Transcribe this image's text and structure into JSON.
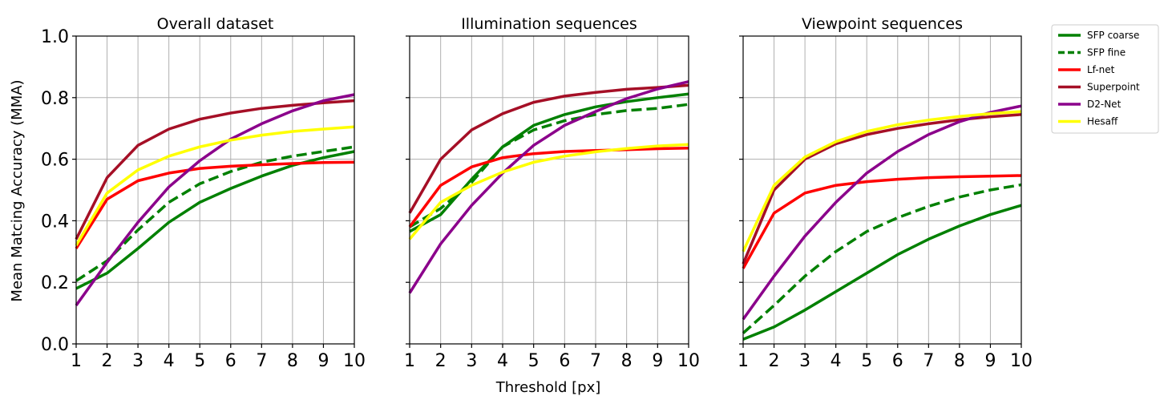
{
  "chart_data": {
    "type": "line",
    "xlabel": "Threshold [px]",
    "ylabel": "Mean Matcing Accuracy (MMA)",
    "x": [
      1,
      2,
      3,
      4,
      5,
      6,
      7,
      8,
      9,
      10
    ],
    "xlim": [
      1,
      10
    ],
    "ylim": [
      0,
      1
    ],
    "x_ticks": [
      "1",
      "2",
      "3",
      "4",
      "5",
      "6",
      "7",
      "8",
      "9",
      "10"
    ],
    "y_ticks": [
      "0.0",
      "0.2",
      "0.4",
      "0.6",
      "0.8",
      "1.0"
    ],
    "grid": true,
    "legend_placement": "right",
    "legend": [
      {
        "name": "SFP coarse",
        "color": "#008000",
        "dash": "solid"
      },
      {
        "name": "SFP fine",
        "color": "#008000",
        "dash": "dashed"
      },
      {
        "name": "Lf-net",
        "color": "#ff0000",
        "dash": "solid"
      },
      {
        "name": "Superpoint",
        "color": "#a50f26",
        "dash": "solid"
      },
      {
        "name": "D2-Net",
        "color": "#8b008b",
        "dash": "solid"
      },
      {
        "name": "Hesaff",
        "color": "#ffff00",
        "dash": "solid"
      }
    ],
    "panels": [
      {
        "title": "Overall dataset",
        "series": [
          {
            "name": "SFP coarse",
            "values": [
              0.18,
              0.23,
              0.31,
              0.395,
              0.46,
              0.505,
              0.545,
              0.58,
              0.605,
              0.625
            ]
          },
          {
            "name": "SFP fine",
            "values": [
              0.205,
              0.27,
              0.37,
              0.46,
              0.52,
              0.56,
              0.59,
              0.61,
              0.625,
              0.64
            ]
          },
          {
            "name": "Lf-net",
            "values": [
              0.31,
              0.47,
              0.53,
              0.555,
              0.57,
              0.577,
              0.582,
              0.586,
              0.589,
              0.59
            ]
          },
          {
            "name": "Superpoint",
            "values": [
              0.34,
              0.54,
              0.645,
              0.698,
              0.73,
              0.75,
              0.765,
              0.775,
              0.783,
              0.79
            ]
          },
          {
            "name": "D2-Net",
            "values": [
              0.125,
              0.265,
              0.395,
              0.51,
              0.595,
              0.665,
              0.715,
              0.757,
              0.79,
              0.81
            ]
          },
          {
            "name": "Hesaff",
            "values": [
              0.32,
              0.49,
              0.565,
              0.61,
              0.64,
              0.662,
              0.678,
              0.69,
              0.698,
              0.705
            ]
          }
        ]
      },
      {
        "title": "Illumination sequences",
        "series": [
          {
            "name": "SFP coarse",
            "values": [
              0.365,
              0.42,
              0.535,
              0.64,
              0.71,
              0.745,
              0.77,
              0.787,
              0.8,
              0.812
            ]
          },
          {
            "name": "SFP fine",
            "values": [
              0.38,
              0.44,
              0.525,
              0.64,
              0.695,
              0.725,
              0.745,
              0.758,
              0.765,
              0.778
            ]
          },
          {
            "name": "Lf-net",
            "values": [
              0.38,
              0.515,
              0.575,
              0.605,
              0.618,
              0.625,
              0.628,
              0.631,
              0.634,
              0.636
            ]
          },
          {
            "name": "Superpoint",
            "values": [
              0.425,
              0.6,
              0.695,
              0.748,
              0.785,
              0.805,
              0.817,
              0.827,
              0.833,
              0.84
            ]
          },
          {
            "name": "D2-Net",
            "values": [
              0.165,
              0.325,
              0.45,
              0.555,
              0.645,
              0.71,
              0.755,
              0.797,
              0.828,
              0.852
            ]
          },
          {
            "name": "Hesaff",
            "values": [
              0.34,
              0.46,
              0.515,
              0.558,
              0.59,
              0.61,
              0.624,
              0.635,
              0.643,
              0.648
            ]
          }
        ]
      },
      {
        "title": "Viewpoint sequences",
        "series": [
          {
            "name": "SFP coarse",
            "values": [
              0.015,
              0.055,
              0.11,
              0.17,
              0.23,
              0.29,
              0.34,
              0.383,
              0.42,
              0.45
            ]
          },
          {
            "name": "SFP fine",
            "values": [
              0.035,
              0.125,
              0.22,
              0.3,
              0.365,
              0.41,
              0.447,
              0.477,
              0.5,
              0.517
            ]
          },
          {
            "name": "Lf-net",
            "values": [
              0.245,
              0.425,
              0.49,
              0.515,
              0.527,
              0.535,
              0.54,
              0.543,
              0.545,
              0.547
            ]
          },
          {
            "name": "Superpoint",
            "values": [
              0.26,
              0.5,
              0.6,
              0.65,
              0.68,
              0.7,
              0.715,
              0.728,
              0.738,
              0.745
            ]
          },
          {
            "name": "D2-Net",
            "values": [
              0.08,
              0.22,
              0.35,
              0.46,
              0.555,
              0.625,
              0.68,
              0.722,
              0.752,
              0.773
            ]
          },
          {
            "name": "Hesaff",
            "values": [
              0.3,
              0.515,
              0.607,
              0.657,
              0.69,
              0.712,
              0.727,
              0.739,
              0.748,
              0.755
            ]
          }
        ]
      }
    ]
  }
}
